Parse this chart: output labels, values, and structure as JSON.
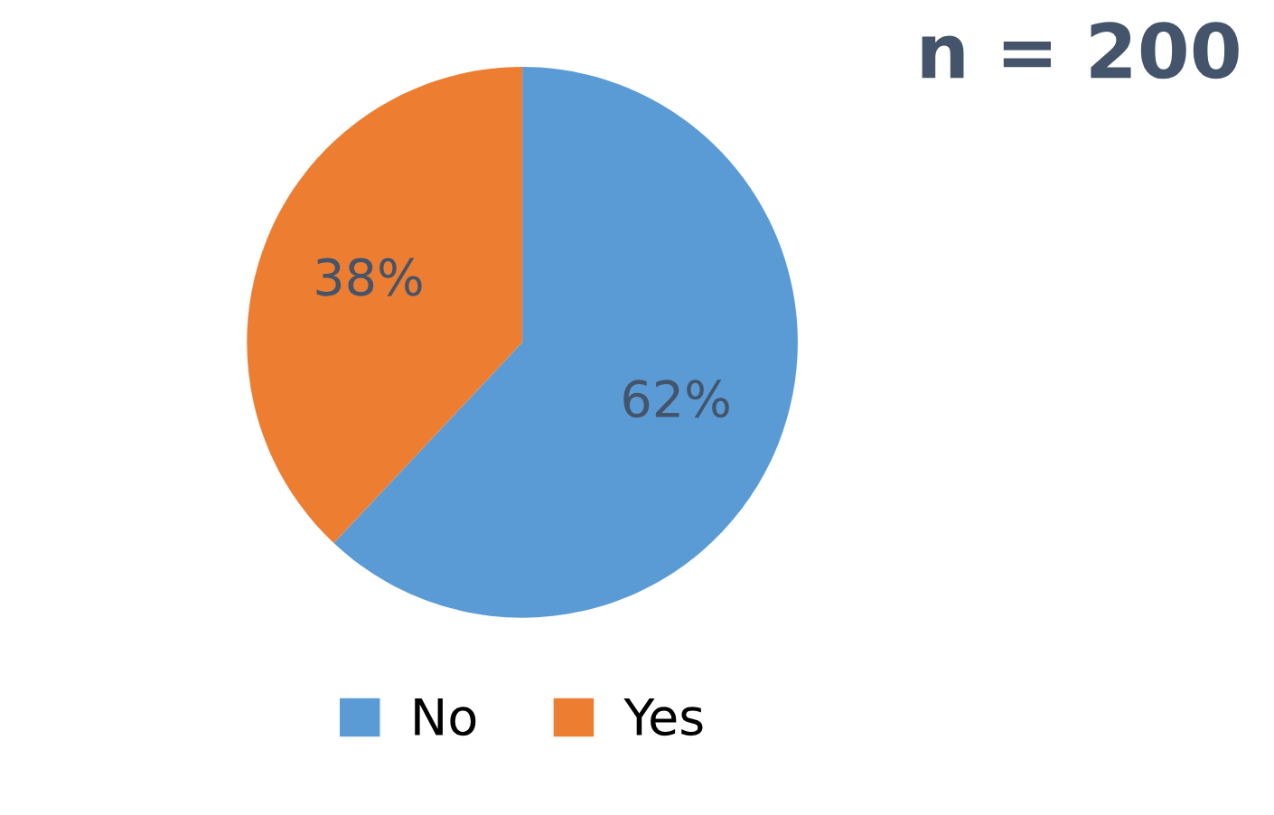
{
  "chart_data": {
    "type": "pie",
    "title": "n = 200",
    "categories": [
      "No",
      "Yes"
    ],
    "values": [
      62,
      38
    ],
    "colors": [
      "#5b9bd5",
      "#ed7d31"
    ],
    "value_labels": [
      "62%",
      "38%"
    ],
    "legend": "bottom"
  }
}
